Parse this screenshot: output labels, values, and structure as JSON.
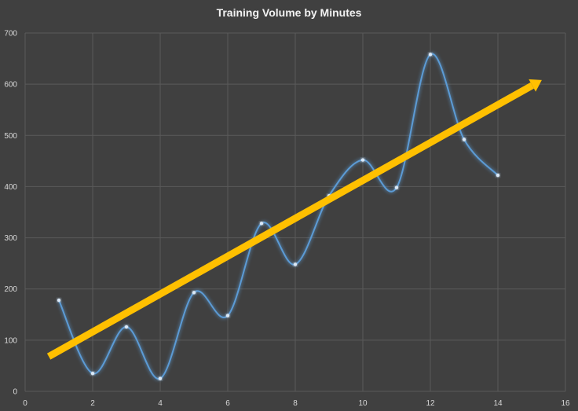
{
  "chart_data": {
    "type": "scatter",
    "title": "Training Volume by Minutes",
    "xlabel": "",
    "ylabel": "",
    "xlim": [
      0,
      16
    ],
    "ylim": [
      0,
      700
    ],
    "x_ticks": [
      0,
      2,
      4,
      6,
      8,
      10,
      12,
      14,
      16
    ],
    "y_ticks": [
      0,
      100,
      200,
      300,
      400,
      500,
      600,
      700
    ],
    "grid": true,
    "legend": "none",
    "line_style": "smoothed",
    "series": [
      {
        "x": [
          1,
          2,
          3,
          4,
          5,
          6,
          7,
          8,
          9,
          10,
          11,
          12,
          13,
          14
        ],
        "y": [
          178,
          35,
          126,
          25,
          193,
          148,
          328,
          248,
          382,
          452,
          398,
          658,
          492,
          422
        ],
        "color": "#5b9bd5"
      }
    ],
    "annotation": {
      "type": "trend-arrow",
      "from": [
        0.7,
        68
      ],
      "to": [
        15.3,
        608
      ],
      "color": "#ffc000"
    }
  }
}
